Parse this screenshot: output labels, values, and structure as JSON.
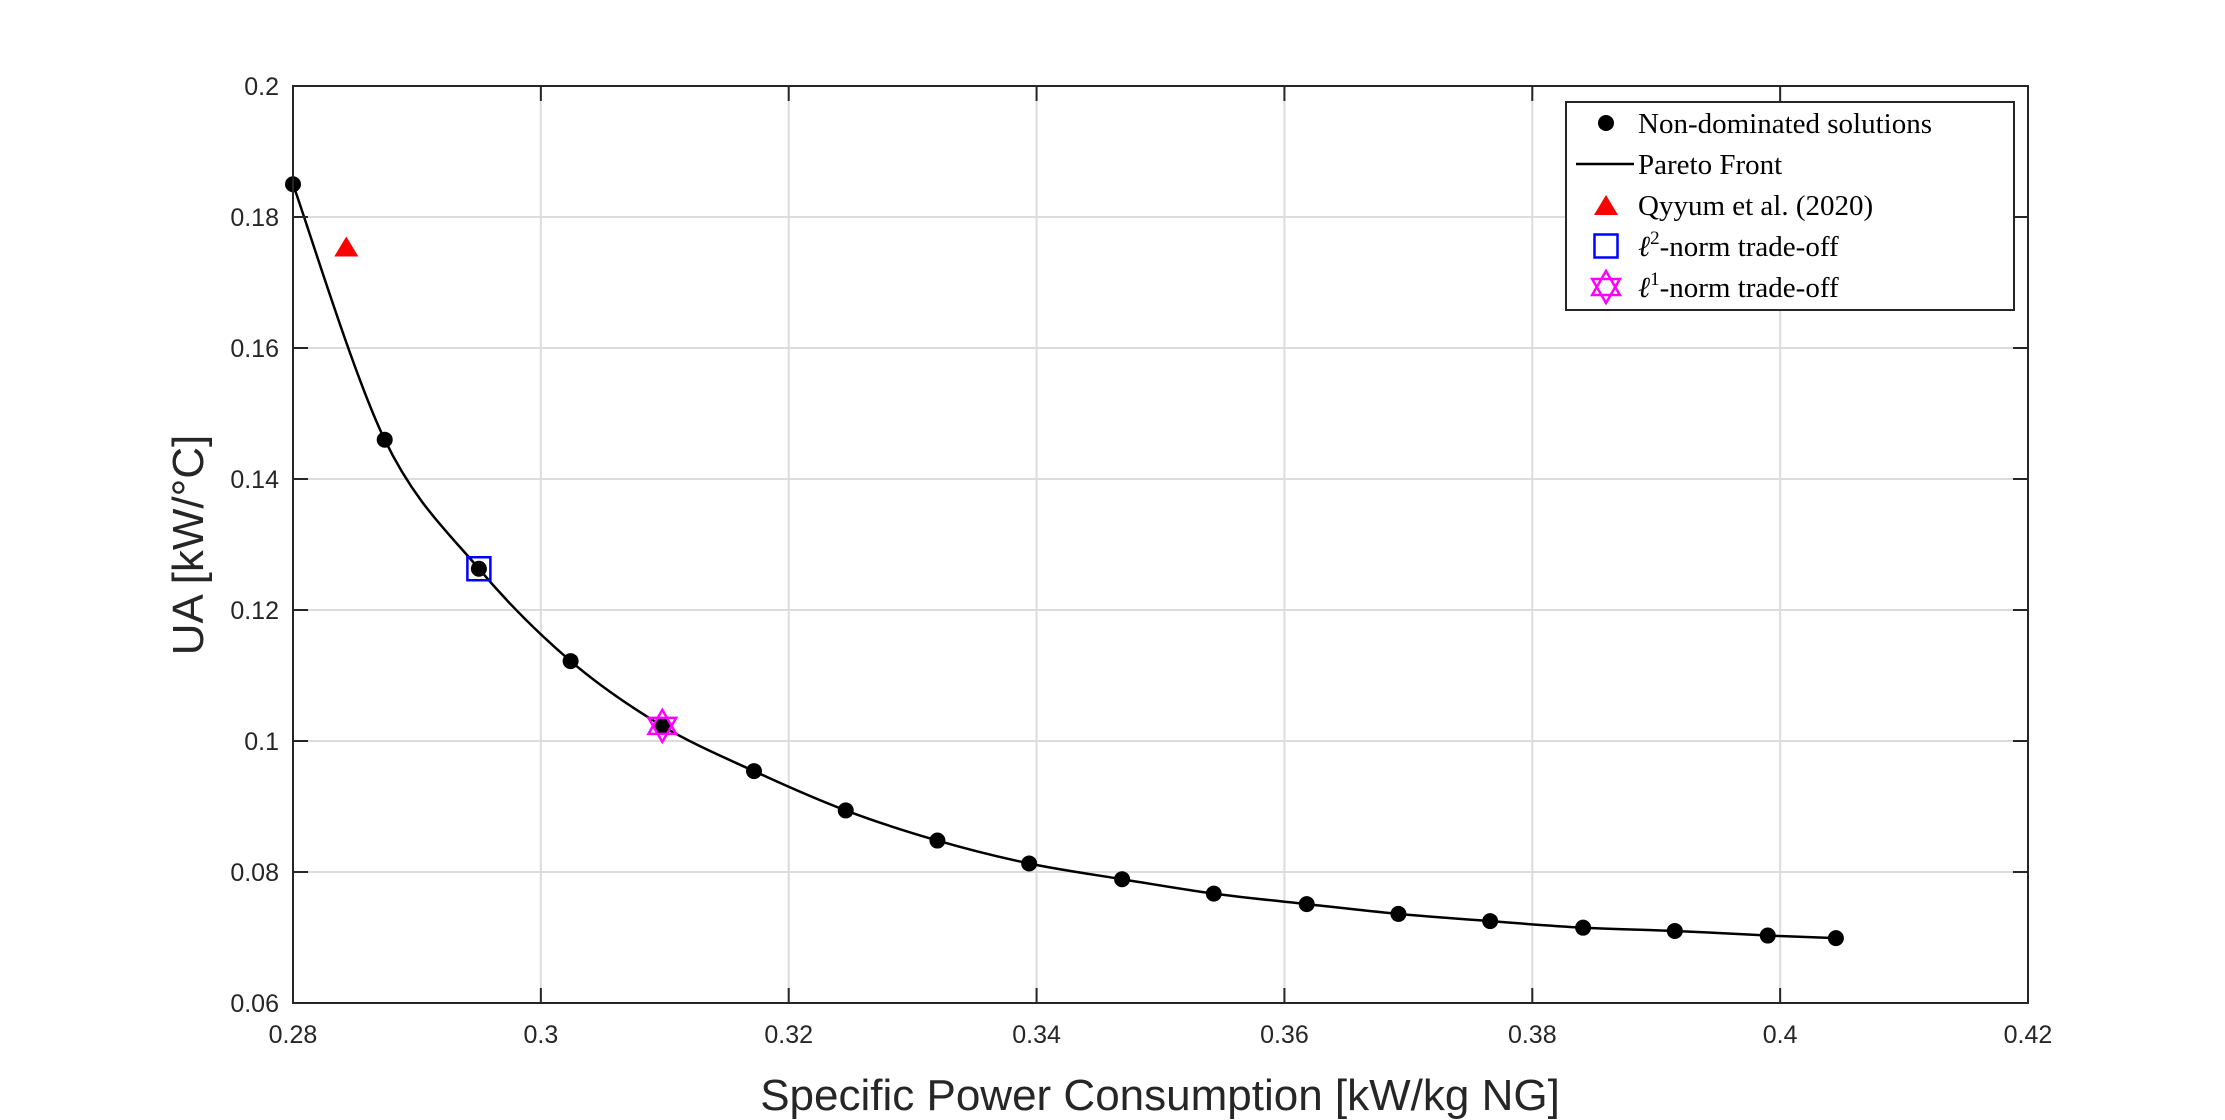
{
  "chart_data": {
    "type": "scatter",
    "title": "",
    "xlabel": "Specific Power Consumption [kW/kg NG]",
    "ylabel": "UA [kW/°C]",
    "xlim": [
      0.28,
      0.42
    ],
    "ylim": [
      0.06,
      0.2
    ],
    "xticks": [
      "0.28",
      "0.3",
      "0.32",
      "0.34",
      "0.36",
      "0.38",
      "0.4",
      "0.42"
    ],
    "yticks": [
      "0.06",
      "0.08",
      "0.1",
      "0.12",
      "0.14",
      "0.16",
      "0.18",
      "0.2"
    ],
    "grid": true,
    "legend_position": "top-right",
    "series": [
      {
        "name": "Non-dominated solutions",
        "marker": "filled-circle",
        "color": "#000000",
        "x": [
          0.28,
          0.2874,
          0.295,
          0.3024,
          0.3098,
          0.3172,
          0.3246,
          0.332,
          0.3394,
          0.3469,
          0.3543,
          0.3618,
          0.3692,
          0.3766,
          0.3841,
          0.3915,
          0.399,
          0.4045
        ],
        "y": [
          0.185,
          0.146,
          0.1263,
          0.1122,
          0.1023,
          0.0954,
          0.0894,
          0.0848,
          0.0813,
          0.0789,
          0.0767,
          0.0751,
          0.0736,
          0.0725,
          0.0715,
          0.071,
          0.0703,
          0.0699
        ]
      },
      {
        "name": "Pareto Front",
        "marker": "line",
        "color": "#000000"
      },
      {
        "name": "Qyyum et al. (2020)",
        "marker": "filled-triangle",
        "color": "#ff0000",
        "x": [
          0.2843
        ],
        "y": [
          0.1755
        ]
      },
      {
        "name": "ℓ2-norm trade-off",
        "marker": "open-square",
        "color": "#0000ff",
        "x": [
          0.295
        ],
        "y": [
          0.1263
        ]
      },
      {
        "name": "ℓ1-norm trade-off",
        "marker": "open-hexagram",
        "color": "#ff00ff",
        "x": [
          0.3098
        ],
        "y": [
          0.1023
        ]
      }
    ],
    "legend_entries": [
      {
        "pre": "",
        "sup": "",
        "post": "Non-dominated solutions"
      },
      {
        "pre": "",
        "sup": "",
        "post": "Pareto Front"
      },
      {
        "pre": "",
        "sup": "",
        "post": "Qyyum et al. (2020)"
      },
      {
        "pre": "ℓ",
        "sup": "2",
        "post": "-norm trade-off"
      },
      {
        "pre": "ℓ",
        "sup": "1",
        "post": "-norm trade-off"
      }
    ]
  }
}
